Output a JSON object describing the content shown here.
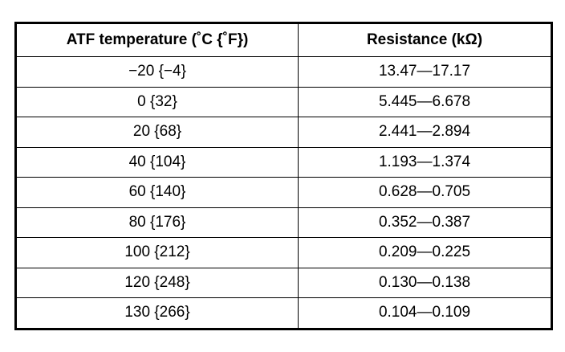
{
  "table": {
    "header": [
      "ATF temperature (˚C {˚F})",
      "Resistance (kΩ)"
    ],
    "rows": [
      [
        "−20 {−4}",
        "13.47—17.17"
      ],
      [
        "0 {32}",
        "5.445—6.678"
      ],
      [
        "20 {68}",
        "2.441—2.894"
      ],
      [
        "40 {104}",
        "1.193—1.374"
      ],
      [
        "60 {140}",
        "0.628—0.705"
      ],
      [
        "80 {176}",
        "0.352—0.387"
      ],
      [
        "100 {212}",
        "0.209—0.225"
      ],
      [
        "120 {248}",
        "0.130—0.138"
      ],
      [
        "130 {266}",
        "0.104—0.109"
      ]
    ]
  }
}
